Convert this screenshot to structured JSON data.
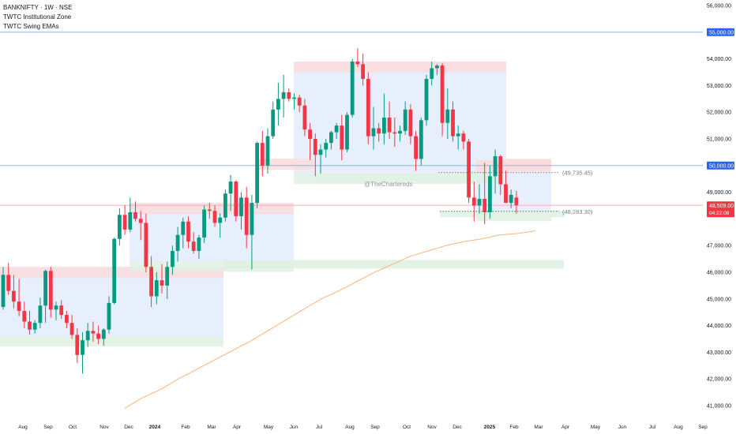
{
  "header": {
    "symbol_line": "BANKNIFTY · 1W · NSE",
    "indicator_1": "TWTC Institutional Zone",
    "indicator_2": "TWTC Swing EMAs"
  },
  "watermark": "@TheChartereds",
  "colors": {
    "up": "#089981",
    "down": "#f23645",
    "ema": "#ffb27a",
    "zone_blue": "#dfe8fb",
    "zone_red": "#fcdcdc",
    "zone_green": "#dff1e3",
    "line_blue": "#7faee6",
    "line_red": "#f7a6ae"
  },
  "chart_data": {
    "type": "candlestick",
    "title": "BANKNIFTY · 1W · NSE",
    "x_ticks": [
      "Aug",
      "Sep",
      "Oct",
      "Nov",
      "Dec",
      "2024",
      "Feb",
      "Mar",
      "Apr",
      "May",
      "Jun",
      "Jul",
      "Aug",
      "Sep",
      "Oct",
      "Nov",
      "Dec",
      "2025",
      "Feb",
      "Mar",
      "Apr",
      "May",
      "Jun",
      "Jul",
      "Aug",
      "Sep"
    ],
    "y_ticks": [
      "56,000.00",
      "54,000.00",
      "53,000.00",
      "52,000.00",
      "51,000.00",
      "49,000.00",
      "47,000.00",
      "46,000.00",
      "45,000.00",
      "44,000.00",
      "43,000.00",
      "42,000.00",
      "41,000.00"
    ],
    "ylim": [
      40500,
      56400
    ],
    "current_price": {
      "value": "48,509.00",
      "countdown": "04:22:08"
    },
    "level_55000": {
      "value": "55,000.00"
    },
    "level_50000": {
      "value": "50,000.00"
    },
    "annotations": [
      {
        "label": "(49,735.45)",
        "value": 49735.45
      },
      {
        "label": "(48,283.30)",
        "value": 48283.3
      }
    ],
    "zones": [
      {
        "type": "institutional",
        "from": "2023-06",
        "to": "2024-03",
        "top": 46200,
        "bottom": 43600
      },
      {
        "type": "institutional",
        "from": "2024-01",
        "to": "2024-05",
        "top": 48600,
        "bottom": 46400
      },
      {
        "type": "institutional",
        "from": "2024-06",
        "to": "2024-12",
        "top": 53900,
        "bottom": 49700
      },
      {
        "type": "institutional",
        "from": "2025-01",
        "to": "2025-03",
        "top": 50200,
        "bottom": 48300
      }
    ],
    "series": [
      {
        "name": "BANKNIFTY",
        "candles": [
          [
            44700,
            46200,
            44600,
            45900
          ],
          [
            45900,
            46350,
            45150,
            45300
          ],
          [
            45300,
            45900,
            44650,
            44900
          ],
          [
            44900,
            45750,
            44350,
            44550
          ],
          [
            44550,
            44900,
            43900,
            44150
          ],
          [
            44150,
            44550,
            43650,
            43850
          ],
          [
            43850,
            44200,
            43700,
            44100
          ],
          [
            44100,
            45050,
            43900,
            44750
          ],
          [
            44750,
            46100,
            44100,
            46050
          ],
          [
            46050,
            46200,
            44300,
            44600
          ],
          [
            44600,
            44900,
            44200,
            44750
          ],
          [
            44750,
            44950,
            44250,
            44400
          ],
          [
            44400,
            44550,
            43900,
            44100
          ],
          [
            44100,
            44400,
            43500,
            43650
          ],
          [
            43650,
            43900,
            42600,
            42900
          ],
          [
            42900,
            43750,
            42200,
            43450
          ],
          [
            43450,
            44100,
            43200,
            43800
          ],
          [
            43800,
            44150,
            43400,
            43700
          ],
          [
            43700,
            44000,
            43300,
            43500
          ],
          [
            43500,
            43900,
            43250,
            43850
          ],
          [
            43850,
            45100,
            43700,
            44850
          ],
          [
            44850,
            47300,
            44800,
            47250
          ],
          [
            47250,
            48400,
            47000,
            48150
          ],
          [
            48150,
            48500,
            47400,
            47600
          ],
          [
            47600,
            48800,
            47500,
            48250
          ],
          [
            48250,
            48650,
            47900,
            48000
          ],
          [
            48000,
            48300,
            47200,
            47850
          ],
          [
            47850,
            48200,
            46000,
            46200
          ],
          [
            46200,
            46600,
            44700,
            45100
          ],
          [
            45100,
            46000,
            44800,
            45700
          ],
          [
            45700,
            46300,
            45200,
            45500
          ],
          [
            45500,
            46400,
            45000,
            46200
          ],
          [
            46200,
            47000,
            45900,
            46800
          ],
          [
            46800,
            47700,
            46400,
            47400
          ],
          [
            47400,
            48050,
            46900,
            47900
          ],
          [
            47900,
            48100,
            46900,
            47150
          ],
          [
            47150,
            47500,
            46700,
            46800
          ],
          [
            46800,
            47400,
            46500,
            47300
          ],
          [
            47300,
            48500,
            47100,
            48350
          ],
          [
            48350,
            48600,
            48000,
            48300
          ],
          [
            48300,
            48500,
            47700,
            47850
          ],
          [
            47850,
            48200,
            47300,
            48050
          ],
          [
            48050,
            49100,
            47900,
            48950
          ],
          [
            48950,
            49650,
            48300,
            49400
          ],
          [
            49400,
            49450,
            47900,
            48100
          ],
          [
            48100,
            49000,
            47600,
            48800
          ],
          [
            48800,
            49200,
            46900,
            47400
          ],
          [
            47400,
            48900,
            46100,
            48600
          ],
          [
            48600,
            50900,
            48400,
            50850
          ],
          [
            50850,
            51300,
            49600,
            50000
          ],
          [
            50000,
            51400,
            49700,
            51100
          ],
          [
            51100,
            52400,
            51000,
            52100
          ],
          [
            52100,
            53100,
            51500,
            52500
          ],
          [
            52500,
            53400,
            51800,
            52750
          ],
          [
            52750,
            52900,
            52400,
            52500
          ],
          [
            52500,
            52700,
            52100,
            52550
          ],
          [
            52550,
            52650,
            52000,
            52250
          ],
          [
            52250,
            52500,
            51100,
            51350
          ],
          [
            51350,
            51600,
            50200,
            51000
          ],
          [
            51000,
            51200,
            49600,
            50400
          ],
          [
            50400,
            50800,
            49700,
            50600
          ],
          [
            50600,
            51000,
            50300,
            50850
          ],
          [
            50850,
            51300,
            50600,
            51250
          ],
          [
            51250,
            51600,
            51000,
            51500
          ],
          [
            51500,
            51900,
            50200,
            50600
          ],
          [
            50600,
            52000,
            50500,
            51900
          ],
          [
            51900,
            54000,
            51800,
            53900
          ],
          [
            53900,
            54400,
            53700,
            53800
          ],
          [
            53800,
            54200,
            53000,
            53250
          ],
          [
            53250,
            53500,
            50800,
            51100
          ],
          [
            51100,
            52200,
            50600,
            51400
          ],
          [
            51400,
            51600,
            50900,
            51200
          ],
          [
            51200,
            52700,
            50800,
            51800
          ],
          [
            51800,
            52400,
            51000,
            51250
          ],
          [
            51250,
            51800,
            50700,
            51200
          ],
          [
            51200,
            51500,
            50900,
            51300
          ],
          [
            51300,
            52400,
            51150,
            52100
          ],
          [
            52100,
            52300,
            50800,
            51100
          ],
          [
            51100,
            51300,
            49800,
            50250
          ],
          [
            50250,
            51800,
            50000,
            51700
          ],
          [
            51700,
            53400,
            51500,
            53250
          ],
          [
            53250,
            53900,
            53000,
            53650
          ],
          [
            53650,
            53800,
            53400,
            53750
          ],
          [
            53750,
            53850,
            51100,
            51600
          ],
          [
            51600,
            52900,
            51000,
            52100
          ],
          [
            52100,
            52400,
            50900,
            51100
          ],
          [
            51100,
            51500,
            50600,
            51200
          ],
          [
            51200,
            51300,
            50600,
            50900
          ],
          [
            50900,
            51000,
            48600,
            48800
          ],
          [
            48800,
            49400,
            47900,
            48500
          ],
          [
            48500,
            49300,
            48200,
            48750
          ],
          [
            48750,
            50100,
            47800,
            48250
          ],
          [
            48250,
            50000,
            48000,
            49600
          ],
          [
            49600,
            50600,
            48950,
            50350
          ],
          [
            50350,
            50400,
            48900,
            49300
          ],
          [
            49300,
            49800,
            48700,
            48600
          ],
          [
            48600,
            49100,
            48400,
            48900
          ],
          [
            48800,
            49050,
            48200,
            48509
          ]
        ]
      },
      {
        "name": "EMA",
        "points": [
          [
            0,
            40900
          ],
          [
            1,
            41300
          ],
          [
            2,
            41600
          ],
          [
            3,
            42000
          ],
          [
            4,
            42350
          ],
          [
            5,
            42700
          ],
          [
            6,
            43050
          ],
          [
            7,
            43400
          ],
          [
            8,
            43800
          ],
          [
            9,
            44200
          ],
          [
            10,
            44600
          ],
          [
            11,
            45000
          ],
          [
            12,
            45300
          ],
          [
            13,
            45650
          ],
          [
            14,
            46000
          ],
          [
            15,
            46300
          ],
          [
            16,
            46600
          ],
          [
            17,
            46800
          ],
          [
            18,
            47000
          ],
          [
            19,
            47150
          ],
          [
            20,
            47250
          ],
          [
            21,
            47400
          ],
          [
            22,
            47450
          ],
          [
            23,
            47550
          ]
        ]
      }
    ]
  }
}
